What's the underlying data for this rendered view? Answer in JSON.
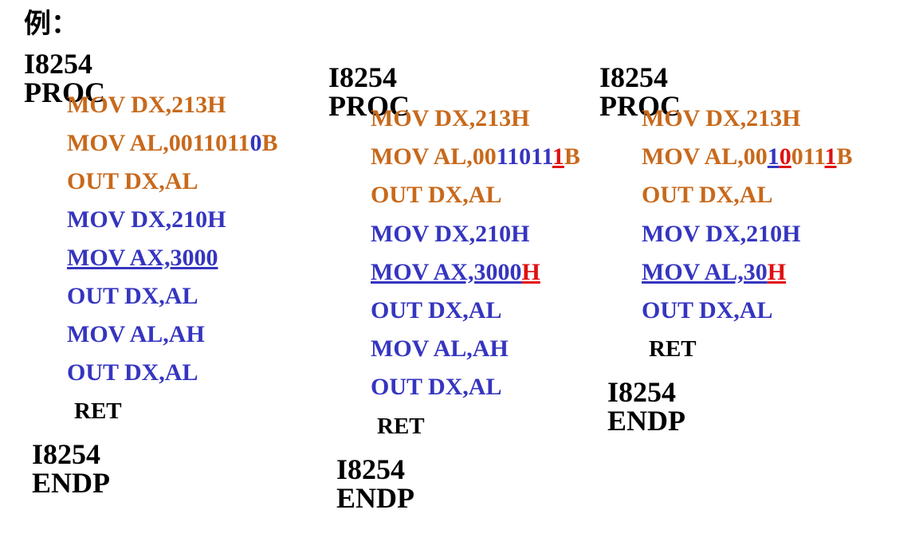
{
  "heading": "例：",
  "colors": {
    "orange": "#c8691b",
    "blue": "#3535c0",
    "red": "#e01010",
    "black": "#000000"
  },
  "columns": [
    {
      "header": "I8254 PROC",
      "lines": [
        {
          "segs": [
            {
              "t": "MOV DX,213H",
              "c": "orange"
            }
          ]
        },
        {
          "segs": [
            {
              "t": "MOV AL,",
              "c": "orange"
            },
            {
              "t": "0011011",
              "c": "orange"
            },
            {
              "t": "0",
              "c": "blue"
            },
            {
              "t": "B",
              "c": "orange"
            }
          ]
        },
        {
          "segs": [
            {
              "t": "OUT DX,AL",
              "c": "orange"
            }
          ]
        },
        {
          "segs": [
            {
              "t": "MOV DX,210H",
              "c": "blue"
            }
          ]
        },
        {
          "segs": [
            {
              "t": "MOV AX,3000",
              "c": "blue",
              "u": true
            }
          ]
        },
        {
          "segs": [
            {
              "t": "OUT DX,AL",
              "c": "blue"
            }
          ]
        },
        {
          "segs": [
            {
              "t": "MOV AL,AH",
              "c": "blue"
            }
          ]
        },
        {
          "segs": [
            {
              "t": "OUT DX,AL",
              "c": "blue"
            }
          ]
        }
      ],
      "ret": "RET",
      "footer": "I8254 ENDP"
    },
    {
      "header": "I8254 PROC",
      "lines": [
        {
          "segs": [
            {
              "t": "MOV DX,213H",
              "c": "orange"
            }
          ]
        },
        {
          "segs": [
            {
              "t": "MOV AL,00",
              "c": "orange"
            },
            {
              "t": "11011",
              "c": "blue"
            },
            {
              "t": "1",
              "c": "red",
              "u": true
            },
            {
              "t": "B",
              "c": "orange"
            }
          ]
        },
        {
          "segs": [
            {
              "t": "OUT DX,AL",
              "c": "orange"
            }
          ]
        },
        {
          "segs": [
            {
              "t": "MOV DX,210H",
              "c": "blue"
            }
          ]
        },
        {
          "segs": [
            {
              "t": "MOV AX,3000",
              "c": "blue",
              "u": true
            },
            {
              "t": "H",
              "c": "red",
              "u": true
            }
          ]
        },
        {
          "segs": [
            {
              "t": "OUT DX,AL",
              "c": "blue"
            }
          ]
        },
        {
          "segs": [
            {
              "t": "MOV AL,AH",
              "c": "blue"
            }
          ]
        },
        {
          "segs": [
            {
              "t": "OUT DX,AL",
              "c": "blue"
            }
          ]
        }
      ],
      "ret": "RET",
      "footer": "I8254 ENDP"
    },
    {
      "header": "I8254 PROC",
      "lines": [
        {
          "segs": [
            {
              "t": "MOV DX,213H",
              "c": "orange"
            }
          ]
        },
        {
          "segs": [
            {
              "t": "MOV AL,00",
              "c": "orange"
            },
            {
              "t": "1",
              "c": "blue",
              "u": true
            },
            {
              "t": "0",
              "c": "red",
              "u": true
            },
            {
              "t": "011",
              "c": "orange"
            },
            {
              "t": "1",
              "c": "red",
              "u": true
            },
            {
              "t": "B",
              "c": "orange"
            }
          ]
        },
        {
          "segs": [
            {
              "t": "OUT DX,AL",
              "c": "orange"
            }
          ]
        },
        {
          "segs": [
            {
              "t": "MOV DX,210H",
              "c": "blue"
            }
          ]
        },
        {
          "segs": [
            {
              "t": "MOV AL,30",
              "c": "blue",
              "u": true
            },
            {
              "t": "H",
              "c": "red",
              "u": true
            }
          ]
        },
        {
          "segs": [
            {
              "t": "OUT DX,AL",
              "c": "blue"
            }
          ]
        }
      ],
      "ret": "RET",
      "footer": "I8254 ENDP"
    }
  ]
}
